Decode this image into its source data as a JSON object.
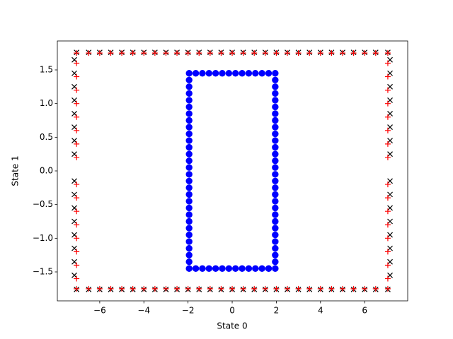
{
  "chart_data": {
    "type": "scatter",
    "xlabel": "State 0",
    "ylabel": "State 1",
    "xlim": [
      -7.92,
      7.95
    ],
    "ylim": [
      -1.93,
      1.93
    ],
    "xticks": [
      {
        "value": -6,
        "label": "−6"
      },
      {
        "value": -4,
        "label": "−4"
      },
      {
        "value": -2,
        "label": "−2"
      },
      0,
      2,
      4,
      6
    ],
    "yticks": [
      {
        "value": -1.5,
        "label": "−1.5"
      },
      {
        "value": -1,
        "label": "−1.0"
      },
      {
        "value": -0.5,
        "label": "−0.5"
      },
      {
        "value": 0,
        "label": "0.0"
      },
      0.5,
      {
        "value": 1,
        "label": "1.0"
      },
      1.5
    ],
    "series": [
      {
        "marker": "x",
        "color": "#000000",
        "x": [
          -7.05,
          -6.5,
          -6.0,
          -5.5,
          -5.0,
          -4.5,
          -4.0,
          -3.5,
          -3.0,
          -2.5,
          -2.0,
          -1.5,
          -1.0,
          -0.5,
          0,
          0.5,
          1.0,
          1.5,
          2.0,
          2.5,
          3.0,
          3.5,
          4.0,
          4.5,
          5.0,
          5.5,
          6.0,
          6.5,
          7.05,
          7.15,
          7.15,
          7.15,
          7.15,
          7.15,
          7.15,
          7.15,
          7.15,
          7.15,
          7.15,
          7.15,
          7.15,
          7.15,
          7.15,
          7.15,
          7.15,
          -7.05,
          -6.5,
          -6.0,
          -5.5,
          -5.0,
          -4.5,
          -4.0,
          -3.5,
          -3.0,
          -2.5,
          -2.0,
          -1.5,
          -1.0,
          -0.5,
          0,
          0.5,
          1.0,
          1.5,
          2.0,
          2.5,
          3.0,
          3.5,
          4.0,
          4.5,
          5.0,
          5.5,
          6.0,
          6.5,
          7.05,
          -7.15,
          -7.15,
          -7.15,
          -7.15,
          -7.15,
          -7.15,
          -7.15,
          -7.15,
          -7.15,
          -7.15,
          -7.15,
          -7.15,
          -7.15,
          -7.15,
          -7.15,
          -7.15
        ],
        "y": [
          1.76,
          1.76,
          1.76,
          1.76,
          1.76,
          1.76,
          1.76,
          1.76,
          1.76,
          1.76,
          1.76,
          1.76,
          1.76,
          1.76,
          1.76,
          1.76,
          1.76,
          1.76,
          1.76,
          1.76,
          1.76,
          1.76,
          1.76,
          1.76,
          1.76,
          1.76,
          1.76,
          1.76,
          1.76,
          1.65,
          1.45,
          1.25,
          1.05,
          0.85,
          0.65,
          0.45,
          0.25,
          -0.15,
          -0.35,
          -0.55,
          -0.75,
          -0.95,
          -1.15,
          -1.35,
          -1.55,
          -1.76,
          -1.76,
          -1.76,
          -1.76,
          -1.76,
          -1.76,
          -1.76,
          -1.76,
          -1.76,
          -1.76,
          -1.76,
          -1.76,
          -1.76,
          -1.76,
          -1.76,
          -1.76,
          -1.76,
          -1.76,
          -1.76,
          -1.76,
          -1.76,
          -1.76,
          -1.76,
          -1.76,
          -1.76,
          -1.76,
          -1.76,
          -1.76,
          -1.76,
          1.65,
          1.45,
          1.25,
          1.05,
          0.85,
          0.65,
          0.45,
          0.25,
          -0.15,
          -0.35,
          -0.55,
          -0.75,
          -0.95,
          -1.15,
          -1.35,
          -1.55
        ]
      },
      {
        "marker": "+",
        "color": "#ff0000",
        "x": [
          -7.05,
          -6.5,
          -6.0,
          -5.5,
          -5.0,
          -4.5,
          -4.0,
          -3.5,
          -3.0,
          -2.5,
          -2.0,
          -1.5,
          -1.0,
          -0.5,
          0,
          0.5,
          1.0,
          1.5,
          2.0,
          2.5,
          3.0,
          3.5,
          4.0,
          4.5,
          5.0,
          5.5,
          6.0,
          6.5,
          7.05,
          7.05,
          7.05,
          7.05,
          7.05,
          7.05,
          7.05,
          7.05,
          7.05,
          7.05,
          7.05,
          7.05,
          7.05,
          7.05,
          7.05,
          7.05,
          7.05,
          -7.05,
          -6.5,
          -6.0,
          -5.5,
          -5.0,
          -4.5,
          -4.0,
          -3.5,
          -3.0,
          -2.5,
          -2.0,
          -1.5,
          -1.0,
          -0.5,
          0,
          0.5,
          1.0,
          1.5,
          2.0,
          2.5,
          3.0,
          3.5,
          4.0,
          4.5,
          5.0,
          5.5,
          6.0,
          6.5,
          7.05,
          -7.05,
          -7.05,
          -7.05,
          -7.05,
          -7.05,
          -7.05,
          -7.05,
          -7.05,
          -7.05,
          -7.05,
          -7.05,
          -7.05,
          -7.05,
          -7.05,
          -7.05,
          -7.05
        ],
        "y": [
          1.75,
          1.75,
          1.75,
          1.75,
          1.75,
          1.75,
          1.75,
          1.75,
          1.75,
          1.75,
          1.75,
          1.75,
          1.75,
          1.75,
          1.75,
          1.75,
          1.75,
          1.75,
          1.75,
          1.75,
          1.75,
          1.75,
          1.75,
          1.75,
          1.75,
          1.75,
          1.75,
          1.75,
          1.75,
          1.6,
          1.4,
          1.2,
          1.0,
          0.8,
          0.6,
          0.4,
          0.2,
          -0.2,
          -0.4,
          -0.6,
          -0.8,
          -1.0,
          -1.2,
          -1.4,
          -1.6,
          -1.75,
          -1.75,
          -1.75,
          -1.75,
          -1.75,
          -1.75,
          -1.75,
          -1.75,
          -1.75,
          -1.75,
          -1.75,
          -1.75,
          -1.75,
          -1.75,
          -1.75,
          -1.75,
          -1.75,
          -1.75,
          -1.75,
          -1.75,
          -1.75,
          -1.75,
          -1.75,
          -1.75,
          -1.75,
          -1.75,
          -1.75,
          -1.75,
          -1.75,
          1.6,
          1.4,
          1.2,
          1.0,
          0.8,
          0.6,
          0.4,
          0.2,
          -0.2,
          -0.4,
          -0.6,
          -0.8,
          -1.0,
          -1.2,
          -1.4,
          -1.6
        ]
      },
      {
        "marker": "o",
        "color": "#0000ff",
        "x": [
          -1.95,
          -1.65,
          -1.35,
          -1.05,
          -0.75,
          -0.45,
          -0.15,
          0.15,
          0.45,
          0.75,
          1.05,
          1.35,
          1.65,
          1.95,
          1.95,
          1.95,
          1.95,
          1.95,
          1.95,
          1.95,
          1.95,
          1.95,
          1.95,
          1.95,
          1.95,
          1.95,
          1.95,
          1.95,
          1.95,
          1.95,
          1.95,
          1.95,
          1.95,
          1.95,
          1.95,
          1.95,
          1.95,
          1.95,
          1.95,
          1.95,
          1.95,
          1.95,
          -1.95,
          -1.65,
          -1.35,
          -1.05,
          -0.75,
          -0.45,
          -0.15,
          0.15,
          0.45,
          0.75,
          1.05,
          1.35,
          1.65,
          1.95,
          -1.95,
          -1.95,
          -1.95,
          -1.95,
          -1.95,
          -1.95,
          -1.95,
          -1.95,
          -1.95,
          -1.95,
          -1.95,
          -1.95,
          -1.95,
          -1.95,
          -1.95,
          -1.95,
          -1.95,
          -1.95,
          -1.95,
          -1.95,
          -1.95,
          -1.95,
          -1.95,
          -1.95,
          -1.95,
          -1.95,
          -1.95,
          -1.95
        ],
        "y": [
          1.45,
          1.45,
          1.45,
          1.45,
          1.45,
          1.45,
          1.45,
          1.45,
          1.45,
          1.45,
          1.45,
          1.45,
          1.45,
          1.45,
          1.35,
          1.25,
          1.15,
          1.05,
          0.95,
          0.85,
          0.75,
          0.65,
          0.55,
          0.45,
          0.35,
          0.25,
          0.15,
          0.05,
          -0.05,
          -0.15,
          -0.25,
          -0.35,
          -0.45,
          -0.55,
          -0.65,
          -0.75,
          -0.85,
          -0.95,
          -1.05,
          -1.15,
          -1.25,
          -1.35,
          -1.45,
          -1.45,
          -1.45,
          -1.45,
          -1.45,
          -1.45,
          -1.45,
          -1.45,
          -1.45,
          -1.45,
          -1.45,
          -1.45,
          -1.45,
          -1.45,
          1.35,
          1.25,
          1.15,
          1.05,
          0.95,
          0.85,
          0.75,
          0.65,
          0.55,
          0.45,
          0.35,
          0.25,
          0.15,
          0.05,
          -0.05,
          -0.15,
          -0.25,
          -0.35,
          -0.45,
          -0.55,
          -0.65,
          -0.75,
          -0.85,
          -0.95,
          -1.05,
          -1.15,
          -1.25,
          -1.35
        ]
      }
    ]
  }
}
